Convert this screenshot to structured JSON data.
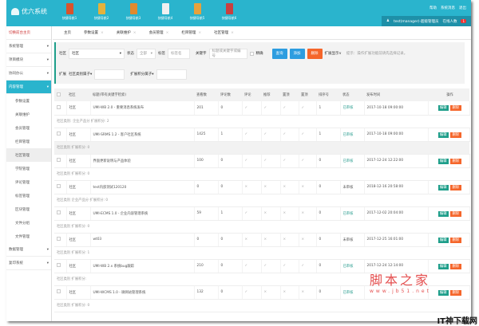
{
  "app": {
    "title": "优六系统"
  },
  "quick_nav": [
    {
      "label": "快捷导航1",
      "color": "#d9532c"
    },
    {
      "label": "快捷导航2",
      "color": "#e4b23c"
    },
    {
      "label": "快捷导航3",
      "color": "#e08a2e"
    },
    {
      "label": "快捷导航4",
      "color": "#f0f0f0"
    },
    {
      "label": "快捷导航5",
      "color": "#e6a23c"
    },
    {
      "label": "快捷导航6",
      "color": "#c94040"
    }
  ],
  "top_links": [
    "帮助",
    "系统消息",
    "退出"
  ],
  "user": {
    "name": "test(manager)-超级管理员",
    "online_label": "在线人数",
    "online_count": "1"
  },
  "sidebar": {
    "home": "切换前台主页",
    "groups": [
      {
        "label": "系统管理"
      },
      {
        "label": "项目模块"
      },
      {
        "label": "协同办公"
      },
      {
        "label": "内容管理",
        "active": true
      }
    ],
    "sub_items": [
      "参数设置",
      "关联维护",
      "会员管理",
      "栏目管理",
      "社区管理",
      "学院管理",
      "评论管理",
      "标签管理",
      "区块管理",
      "文件分组",
      "文件管理"
    ],
    "selected": "社区管理",
    "bottom_groups": [
      {
        "label": "数据管理"
      },
      {
        "label": "复印系统"
      }
    ]
  },
  "tabs": [
    "主页",
    "参数设置",
    "关联维护",
    "会员管理",
    "栏目管理",
    "社区管理"
  ],
  "filter": {
    "community_label": "社区",
    "community_value": "社区",
    "status_label": "状态",
    "status_value": "全部",
    "tag_label": "标签",
    "tag_placeholder": "标签名",
    "keyword_label": "关键字",
    "keyword_placeholder": "标题或关键字或编号",
    "exact_label": "精确",
    "query": "查询",
    "add": "添加",
    "delete": "删除",
    "ext_display": "扩展显示∨",
    "tip": "提示：操作扩展功能前请先选择记录。",
    "ext_label": "扩展",
    "ext_field1": "社区类别属子▾",
    "ext_field2": "扩展积分属子▾"
  },
  "table": {
    "headers": [
      "",
      "社区",
      "标题(带有关键字检索)",
      "查看数",
      "评论数",
      "评论",
      "推荐",
      "置顶",
      "置顶",
      "排序号",
      "状态",
      "发布时间",
      "操作"
    ],
    "edit": "编辑",
    "del": "删除",
    "rows": [
      {
        "community": "社区",
        "title": "UMI-WB 2.0 - 重要消息系统发布",
        "views": "201",
        "comments": "0",
        "flags": [
          "✓",
          "✓",
          "✓",
          "✓"
        ],
        "order": "1",
        "status": "已审核",
        "time": "2017-10-18 09:00:00",
        "sub": "社区类别: 企业产品分  扩展积分: 2"
      },
      {
        "community": "社区",
        "title": "UMI-SRMS 1.2 - 客户社区系统",
        "views": "1425",
        "comments": "1",
        "flags": [
          "✓",
          "✓",
          "✓",
          "✓"
        ],
        "order": "1",
        "status": "已审核",
        "time": "2017-10-18 09:00:00",
        "sub": "社区类别  扩展积分: 0"
      },
      {
        "community": "社区",
        "title": "界面更新说明与产品体验",
        "views": "100",
        "comments": "0",
        "flags": [
          "✓",
          "✓",
          "✓",
          "✓"
        ],
        "order": "0",
        "status": "已审核",
        "time": "2017-12-24 12:22:00",
        "sub": "社区类别  扩展积分: 0"
      },
      {
        "community": "社区",
        "title": "test内部测试120120",
        "views": "0",
        "comments": "0",
        "flags": [
          "×",
          "×",
          "×",
          "×"
        ],
        "order": "0",
        "status": "未审核",
        "time": "2018-12-16 20:58:00",
        "sub": "社区类别 企业产品分  扩展积分: 0"
      },
      {
        "community": "社区",
        "title": "UMI-ECMS 1.0 - 企业内容管理系统",
        "views": "59",
        "comments": "1",
        "flags": [
          "✓",
          "×",
          "×",
          "×"
        ],
        "order": "0",
        "status": "已审核",
        "time": "2017-12-02 20:04:00",
        "sub": "社区类别  扩展积分: 0"
      },
      {
        "community": "社区",
        "title": "wt03",
        "views": "0",
        "comments": "0",
        "flags": [
          "×",
          "×",
          "×",
          "×"
        ],
        "order": "0",
        "status": "未审核",
        "time": "2017-12-25 16:01:00",
        "sub": "社区类别  扩展积分: 1"
      },
      {
        "community": "社区",
        "title": "UMI-WB 2.x 系统bug跟踪",
        "views": "210",
        "comments": "0",
        "flags": [
          "✓",
          "✓",
          "✓",
          "✓"
        ],
        "order": "0",
        "status": "已审核",
        "time": "2017-12-24 12:14:00",
        "sub": "社区类别  扩展积分:"
      },
      {
        "community": "社区",
        "title": "UMI-WCMS 1.0 - 微网站管理系统",
        "views": "132",
        "comments": "0",
        "flags": [
          "✓",
          "×",
          "×",
          "×"
        ],
        "order": "0",
        "status": "已审核",
        "time": "",
        "sub": "社区类别  扩展积分: 0"
      }
    ]
  },
  "watermark": {
    "text": "脚本之家",
    "url": "www.jb51.net",
    "corner": "IT神下载网"
  }
}
